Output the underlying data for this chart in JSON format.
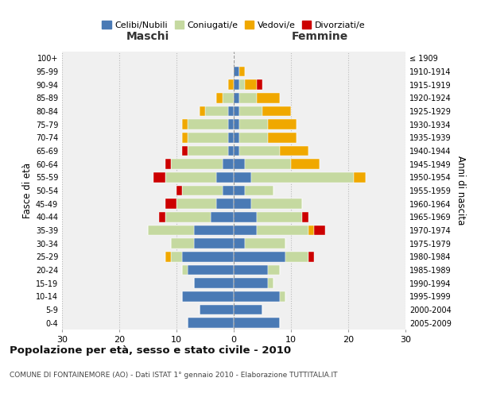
{
  "age_groups": [
    "0-4",
    "5-9",
    "10-14",
    "15-19",
    "20-24",
    "25-29",
    "30-34",
    "35-39",
    "40-44",
    "45-49",
    "50-54",
    "55-59",
    "60-64",
    "65-69",
    "70-74",
    "75-79",
    "80-84",
    "85-89",
    "90-94",
    "95-99",
    "100+"
  ],
  "birth_years": [
    "2005-2009",
    "2000-2004",
    "1995-1999",
    "1990-1994",
    "1985-1989",
    "1980-1984",
    "1975-1979",
    "1970-1974",
    "1965-1969",
    "1960-1964",
    "1955-1959",
    "1950-1954",
    "1945-1949",
    "1940-1944",
    "1935-1939",
    "1930-1934",
    "1925-1929",
    "1920-1924",
    "1915-1919",
    "1910-1914",
    "≤ 1909"
  ],
  "maschi": {
    "celibi": [
      8,
      6,
      9,
      7,
      8,
      9,
      7,
      7,
      4,
      3,
      2,
      3,
      2,
      1,
      1,
      1,
      1,
      0,
      0,
      0,
      0
    ],
    "coniugati": [
      0,
      0,
      0,
      0,
      1,
      2,
      4,
      8,
      8,
      7,
      7,
      9,
      9,
      7,
      7,
      7,
      4,
      2,
      0,
      0,
      0
    ],
    "vedovi": [
      0,
      0,
      0,
      0,
      0,
      1,
      0,
      0,
      0,
      0,
      0,
      0,
      0,
      0,
      1,
      1,
      1,
      1,
      1,
      0,
      0
    ],
    "divorziati": [
      0,
      0,
      0,
      0,
      0,
      0,
      0,
      0,
      1,
      2,
      1,
      2,
      1,
      1,
      0,
      0,
      0,
      0,
      0,
      0,
      0
    ]
  },
  "femmine": {
    "nubili": [
      8,
      5,
      8,
      6,
      6,
      9,
      2,
      4,
      4,
      3,
      2,
      3,
      2,
      1,
      1,
      1,
      1,
      1,
      1,
      1,
      0
    ],
    "coniugate": [
      0,
      0,
      1,
      1,
      2,
      4,
      7,
      9,
      8,
      9,
      5,
      18,
      8,
      7,
      5,
      5,
      4,
      3,
      1,
      0,
      0
    ],
    "vedove": [
      0,
      0,
      0,
      0,
      0,
      0,
      0,
      1,
      0,
      0,
      0,
      2,
      5,
      5,
      5,
      5,
      5,
      4,
      2,
      1,
      0
    ],
    "divorziate": [
      0,
      0,
      0,
      0,
      0,
      1,
      0,
      2,
      1,
      0,
      0,
      0,
      0,
      0,
      0,
      0,
      0,
      0,
      1,
      0,
      0
    ]
  },
  "colors": {
    "celibi": "#4a7ab5",
    "coniugati": "#c5d9a0",
    "vedovi": "#f0a800",
    "divorziati": "#cc0000"
  },
  "title": "Popolazione per età, sesso e stato civile - 2010",
  "subtitle": "COMUNE DI FONTAINEMORE (AO) - Dati ISTAT 1° gennaio 2010 - Elaborazione TUTTITALIA.IT",
  "xlabel_left": "Maschi",
  "xlabel_right": "Femmine",
  "ylabel_left": "Fasce di età",
  "ylabel_right": "Anni di nascita",
  "xlim": 30,
  "bg_color": "#ffffff",
  "plot_bg": "#f0f0f0",
  "grid_color": "#cccccc",
  "legend_labels": [
    "Celibi/Nubili",
    "Coniugati/e",
    "Vedovi/e",
    "Divorziati/e"
  ]
}
